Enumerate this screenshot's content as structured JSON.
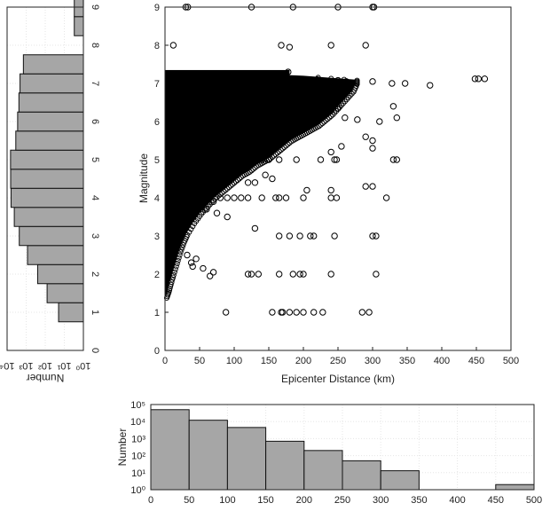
{
  "chart_data": [
    {
      "id": "scatter",
      "type": "scatter",
      "xlabel": "Epicenter Distance (km)",
      "ylabel": "Magnitude",
      "xlim": [
        0,
        500
      ],
      "ylim": [
        0,
        9
      ],
      "xticks": [
        "0",
        "50",
        "100",
        "150",
        "200",
        "250",
        "300",
        "350",
        "400",
        "450",
        "500"
      ],
      "yticks": [
        "0",
        "1",
        "2",
        "3",
        "4",
        "5",
        "6",
        "7",
        "8",
        "9"
      ],
      "marker": "open-circle",
      "dense_envelope": [
        [
          0,
          1.4
        ],
        [
          3,
          1.55
        ],
        [
          6,
          1.75
        ],
        [
          10,
          2.0
        ],
        [
          15,
          2.3
        ],
        [
          20,
          2.6
        ],
        [
          25,
          2.85
        ],
        [
          30,
          3.05
        ],
        [
          40,
          3.35
        ],
        [
          50,
          3.6
        ],
        [
          60,
          3.8
        ],
        [
          70,
          4.0
        ],
        [
          80,
          4.15
        ],
        [
          90,
          4.3
        ],
        [
          100,
          4.45
        ],
        [
          110,
          4.6
        ],
        [
          120,
          4.7
        ],
        [
          130,
          4.85
        ],
        [
          140,
          4.95
        ],
        [
          150,
          5.05
        ],
        [
          160,
          5.2
        ],
        [
          170,
          5.35
        ],
        [
          180,
          5.5
        ],
        [
          190,
          5.6
        ],
        [
          200,
          5.7
        ],
        [
          210,
          5.8
        ],
        [
          220,
          5.9
        ],
        [
          230,
          6.05
        ],
        [
          240,
          6.2
        ],
        [
          250,
          6.4
        ],
        [
          260,
          6.6
        ],
        [
          270,
          6.8
        ],
        [
          275,
          7.0
        ],
        [
          275,
          7.1
        ],
        [
          200,
          7.2
        ],
        [
          100,
          7.28
        ],
        [
          0,
          7.3
        ]
      ],
      "plateau_band": {
        "x": [
          0,
          180
        ],
        "y": [
          7.2,
          7.35
        ]
      },
      "points": [
        [
          30,
          9.0
        ],
        [
          33,
          9.0
        ],
        [
          125,
          9.0
        ],
        [
          185,
          9.0
        ],
        [
          250,
          9.0
        ],
        [
          300,
          9.0
        ],
        [
          302,
          9.0
        ],
        [
          12,
          8.0
        ],
        [
          168,
          8.0
        ],
        [
          240,
          8.0
        ],
        [
          290,
          8.0
        ],
        [
          180,
          7.95
        ],
        [
          178,
          7.3
        ],
        [
          220,
          7.1
        ],
        [
          250,
          7.08
        ],
        [
          262,
          7.05
        ],
        [
          300,
          7.05
        ],
        [
          328,
          7.0
        ],
        [
          347,
          7.0
        ],
        [
          383,
          6.95
        ],
        [
          448,
          7.12
        ],
        [
          453,
          7.12
        ],
        [
          462,
          7.12
        ],
        [
          330,
          6.4
        ],
        [
          335,
          6.1
        ],
        [
          310,
          6.0
        ],
        [
          278,
          6.05
        ],
        [
          250,
          6.35
        ],
        [
          240,
          6.3
        ],
        [
          260,
          6.1
        ],
        [
          290,
          5.6
        ],
        [
          300,
          5.5
        ],
        [
          240,
          5.2
        ],
        [
          255,
          5.35
        ],
        [
          300,
          5.3
        ],
        [
          245,
          5.0
        ],
        [
          248,
          5.0
        ],
        [
          330,
          5.0
        ],
        [
          335,
          5.0
        ],
        [
          225,
          5.0
        ],
        [
          190,
          5.0
        ],
        [
          165,
          5.0
        ],
        [
          150,
          5.0
        ],
        [
          140,
          5.0
        ],
        [
          130,
          5.0
        ],
        [
          110,
          5.0
        ],
        [
          100,
          5.0
        ],
        [
          145,
          4.6
        ],
        [
          130,
          4.4
        ],
        [
          155,
          4.5
        ],
        [
          120,
          4.4
        ],
        [
          205,
          4.2
        ],
        [
          290,
          4.3
        ],
        [
          300,
          4.3
        ],
        [
          240,
          4.2
        ],
        [
          80,
          4.0
        ],
        [
          90,
          4.0
        ],
        [
          100,
          4.0
        ],
        [
          110,
          4.0
        ],
        [
          120,
          4.0
        ],
        [
          140,
          4.0
        ],
        [
          160,
          4.0
        ],
        [
          165,
          4.0
        ],
        [
          175,
          4.0
        ],
        [
          200,
          4.0
        ],
        [
          240,
          4.0
        ],
        [
          248,
          4.0
        ],
        [
          320,
          4.0
        ],
        [
          60,
          3.7
        ],
        [
          70,
          3.9
        ],
        [
          75,
          3.6
        ],
        [
          90,
          3.5
        ],
        [
          130,
          3.2
        ],
        [
          165,
          3.0
        ],
        [
          180,
          3.0
        ],
        [
          195,
          3.0
        ],
        [
          210,
          3.0
        ],
        [
          215,
          3.0
        ],
        [
          245,
          3.0
        ],
        [
          300,
          3.0
        ],
        [
          305,
          3.0
        ],
        [
          32,
          2.5
        ],
        [
          45,
          2.4
        ],
        [
          40,
          2.2
        ],
        [
          38,
          2.3
        ],
        [
          55,
          2.15
        ],
        [
          70,
          2.05
        ],
        [
          65,
          1.95
        ],
        [
          120,
          2.0
        ],
        [
          125,
          2.0
        ],
        [
          135,
          2.0
        ],
        [
          165,
          2.0
        ],
        [
          185,
          2.0
        ],
        [
          195,
          2.0
        ],
        [
          200,
          2.0
        ],
        [
          240,
          2.0
        ],
        [
          305,
          2.0
        ],
        [
          88,
          1.0
        ],
        [
          155,
          1.0
        ],
        [
          168,
          1.0
        ],
        [
          170,
          1.0
        ],
        [
          180,
          1.0
        ],
        [
          190,
          1.0
        ],
        [
          200,
          1.0
        ],
        [
          215,
          1.0
        ],
        [
          228,
          1.0
        ],
        [
          285,
          1.0
        ],
        [
          295,
          1.0
        ]
      ]
    },
    {
      "id": "magnitude_histogram",
      "type": "bar",
      "orientation": "horizontal",
      "xlabel": "Number",
      "xscale": "log",
      "xlim": [
        1,
        10000
      ],
      "xticks": [
        "10⁴",
        "10³",
        "10²",
        "10¹",
        "10⁰"
      ],
      "bins": [
        [
          0.75,
          1.25
        ],
        [
          1.25,
          1.75
        ],
        [
          1.75,
          2.25
        ],
        [
          2.25,
          2.75
        ],
        [
          2.75,
          3.25
        ],
        [
          3.25,
          3.75
        ],
        [
          3.75,
          4.25
        ],
        [
          4.25,
          4.75
        ],
        [
          4.75,
          5.25
        ],
        [
          5.25,
          5.75
        ],
        [
          5.75,
          6.25
        ],
        [
          6.25,
          6.75
        ],
        [
          6.75,
          7.25
        ],
        [
          7.25,
          7.75
        ],
        [
          7.75,
          8.25
        ],
        [
          8.25,
          8.75
        ],
        [
          8.75,
          9.25
        ]
      ],
      "values": [
        20,
        80,
        250,
        850,
        2300,
        4200,
        6200,
        6500,
        6600,
        3500,
        2800,
        2400,
        2100,
        1400,
        0,
        3,
        3
      ]
    },
    {
      "id": "distance_histogram",
      "type": "bar",
      "ylabel": "Number",
      "yscale": "log",
      "ylim": [
        1,
        100000
      ],
      "xlim": [
        0,
        500
      ],
      "xticks": [
        "0",
        "50",
        "100",
        "150",
        "200",
        "250",
        "300",
        "350",
        "400",
        "450",
        "500"
      ],
      "yticks": [
        "10⁰",
        "10¹",
        "10²",
        "10³",
        "10⁴",
        "10⁵"
      ],
      "bins": [
        [
          0,
          50
        ],
        [
          50,
          100
        ],
        [
          100,
          150
        ],
        [
          150,
          200
        ],
        [
          200,
          250
        ],
        [
          250,
          300
        ],
        [
          300,
          350
        ],
        [
          350,
          400
        ],
        [
          400,
          450
        ],
        [
          450,
          500
        ]
      ],
      "values": [
        50000,
        12000,
        4500,
        700,
        200,
        50,
        13,
        0,
        0,
        2
      ]
    }
  ]
}
